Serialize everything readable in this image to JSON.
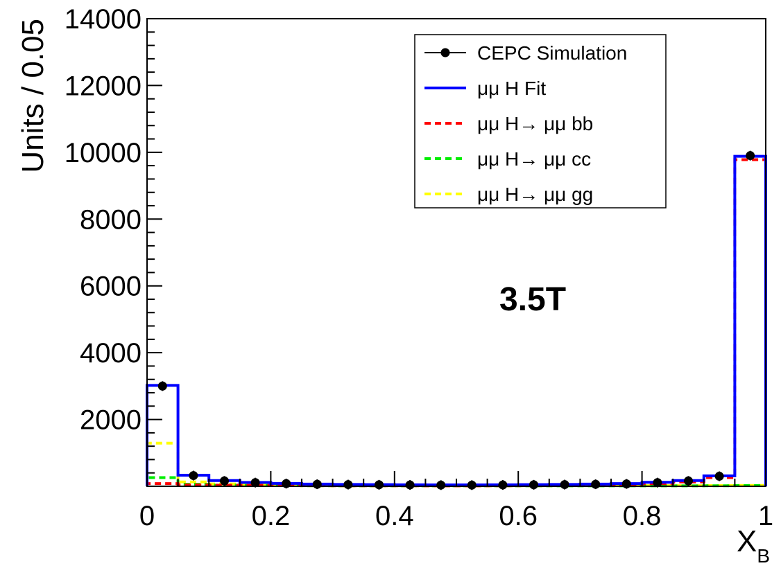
{
  "chart_data": {
    "type": "line",
    "x_edges": [
      0,
      0.05,
      0.1,
      0.15,
      0.2,
      0.25,
      0.3,
      0.35,
      0.4,
      0.45,
      0.5,
      0.55,
      0.6,
      0.65,
      0.7,
      0.75,
      0.8,
      0.85,
      0.9,
      0.95,
      1.0
    ],
    "bin_centers": [
      0.025,
      0.075,
      0.125,
      0.175,
      0.225,
      0.275,
      0.325,
      0.375,
      0.425,
      0.475,
      0.525,
      0.575,
      0.625,
      0.675,
      0.725,
      0.775,
      0.825,
      0.875,
      0.925,
      0.975
    ],
    "xlim": [
      0,
      1
    ],
    "ylim": [
      0,
      14000
    ],
    "ylabel": "Units / 0.05",
    "xlabel_main": "X",
    "xlabel_sub": "B",
    "x_ticks": [
      0,
      0.2,
      0.4,
      0.6,
      0.8,
      1
    ],
    "x_tick_labels": [
      "0",
      "0.2",
      "0.4",
      "0.6",
      "0.8",
      "1"
    ],
    "y_ticks": [
      2000,
      4000,
      6000,
      8000,
      10000,
      12000,
      14000
    ],
    "y_tick_labels": [
      "2000",
      "4000",
      "6000",
      "8000",
      "10000",
      "12000",
      "14000"
    ],
    "annotation": "3.5T",
    "legend_position": "top-right",
    "series": [
      {
        "name": "CEPC Simulation",
        "style": "points",
        "color": "#000000",
        "values": [
          3000,
          320,
          160,
          110,
          80,
          60,
          50,
          45,
          40,
          35,
          35,
          40,
          45,
          50,
          60,
          70,
          110,
          160,
          300,
          9900
        ]
      },
      {
        "name": "μμ H Fit",
        "style": "solid",
        "color": "#0000ff",
        "values": [
          3020,
          330,
          170,
          115,
          85,
          65,
          55,
          50,
          45,
          42,
          42,
          45,
          50,
          55,
          65,
          80,
          120,
          170,
          310,
          9880
        ]
      },
      {
        "name": "μμ H→ μμ bb",
        "style": "dashed",
        "color": "#ff0000",
        "values": [
          80,
          40,
          30,
          25,
          20,
          18,
          16,
          15,
          15,
          14,
          14,
          16,
          18,
          22,
          30,
          45,
          80,
          130,
          260,
          9780
        ]
      },
      {
        "name": "μμ H→ μμ cc",
        "style": "dashed",
        "color": "#00ee00",
        "values": [
          260,
          60,
          35,
          25,
          20,
          16,
          14,
          13,
          12,
          12,
          12,
          12,
          12,
          12,
          12,
          12,
          12,
          12,
          15,
          20
        ]
      },
      {
        "name": "μμ H→ μμ gg",
        "style": "dashed",
        "color": "#ffff00",
        "values": [
          1290,
          130,
          70,
          50,
          35,
          28,
          24,
          22,
          20,
          18,
          18,
          18,
          18,
          18,
          18,
          18,
          18,
          18,
          20,
          25
        ]
      }
    ]
  }
}
